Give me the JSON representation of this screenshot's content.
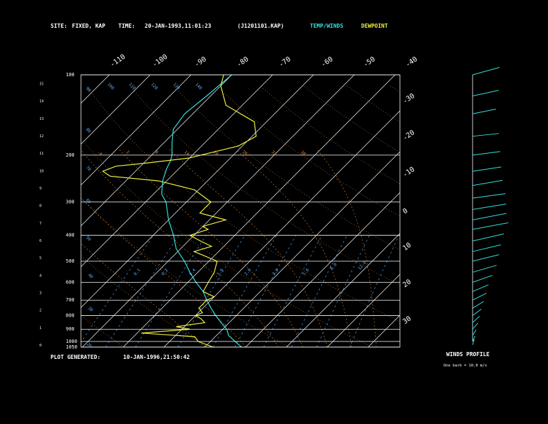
{
  "header": {
    "site_label": "SITE:",
    "site_value": "FIXED, KAP",
    "time_label": "TIME:",
    "time_value": "20-JAN-1993,11:01:23",
    "file_value": "(J1201101.KAP)",
    "legend_temp": "TEMP/WINDS",
    "legend_dew": "DEWPOINT"
  },
  "footer": {
    "plot_label": "PLOT GENERATED:",
    "plot_value": "10-JAN-1996,21:50:42"
  },
  "winds": {
    "title": "WINDS PROFILE",
    "note": "One barb = 10.0 m/s"
  },
  "colors": {
    "background": "#000000",
    "temp": "#33e0e0",
    "dew": "#f0f040",
    "grid": "#ffffff",
    "mixing": "#5bb0ff",
    "adiabat": "#e08a3a"
  },
  "chart_data": {
    "type": "line",
    "subtype": "skew-t log-p",
    "pressure_labels": [
      "100",
      "200",
      "300",
      "400",
      "500",
      "600",
      "700",
      "800",
      "900",
      "1000",
      "1050"
    ],
    "height_km_labels": [
      "0",
      "1",
      "2",
      "3",
      "4",
      "5",
      "6",
      "7",
      "8",
      "9",
      "10",
      "11",
      "12",
      "13",
      "14",
      "15"
    ],
    "top_temp_labels": [
      "-110",
      "-100",
      "-90",
      "-80",
      "-70",
      "-60",
      "-50",
      "-40"
    ],
    "right_temp_labels": [
      "-30",
      "-20",
      "-10",
      "0",
      "10",
      "20",
      "30"
    ],
    "mixing_labels": [
      "0.1",
      "0.2",
      "0.4",
      "1.0",
      "2.0",
      "3.0",
      "5.0",
      "8.0",
      "12.0"
    ],
    "dry_adiabat_labels": [
      "20",
      "30",
      "40",
      "50",
      "60",
      "70",
      "80",
      "90",
      "100",
      "110",
      "120",
      "130",
      "140"
    ],
    "moist_adiabat_labels": [
      "-4",
      "2",
      "8",
      "14",
      "20",
      "26",
      "32",
      "38"
    ],
    "ylim_hpa": [
      1050,
      100
    ],
    "series": [
      {
        "name": "TEMP/WINDS",
        "p_hpa": [
          1050,
          1000,
          950,
          900,
          850,
          800,
          750,
          700,
          650,
          600,
          550,
          500,
          450,
          400,
          350,
          300,
          280,
          250,
          225,
          210,
          200,
          180,
          160,
          140,
          120,
          100
        ],
        "t_c": [
          -1,
          -4,
          -7,
          -9,
          -12,
          -15,
          -18,
          -21,
          -24,
          -28,
          -32,
          -36,
          -41,
          -45,
          -50,
          -55,
          -58,
          -61,
          -63,
          -64,
          -65,
          -68,
          -71,
          -72,
          -71,
          -70
        ]
      },
      {
        "name": "DEWPOINT",
        "p_hpa": [
          1050,
          1000,
          960,
          930,
          900,
          880,
          850,
          820,
          800,
          780,
          750,
          700,
          680,
          650,
          600,
          550,
          500,
          460,
          440,
          420,
          400,
          380,
          370,
          350,
          330,
          310,
          300,
          270,
          250,
          240,
          230,
          220,
          215,
          205,
          200,
          185,
          170,
          150,
          130,
          110,
          100
        ],
        "td_c": [
          -8,
          -13,
          -15,
          -29,
          -18,
          -22,
          -16,
          -18,
          -20,
          -19,
          -21,
          -21,
          -20,
          -24,
          -25,
          -26,
          -28,
          -36,
          -33,
          -37,
          -41,
          -38,
          -40,
          -36,
          -44,
          -44,
          -44,
          -51,
          -62,
          -75,
          -78,
          -76,
          -70,
          -60,
          -58,
          -51,
          -49,
          -53,
          -64,
          -70,
          -72
        ]
      }
    ],
    "winds_profile": {
      "p_hpa": [
        100,
        120,
        140,
        170,
        200,
        230,
        260,
        290,
        320,
        350,
        380,
        420,
        460,
        500,
        550,
        600,
        650,
        700,
        750,
        800,
        850,
        900,
        950,
        1000,
        1030
      ],
      "dir_deg": [
        300,
        290,
        285,
        270,
        265,
        260,
        255,
        260,
        255,
        250,
        250,
        245,
        245,
        245,
        240,
        235,
        230,
        225,
        220,
        215,
        210,
        205,
        200,
        195,
        190
      ],
      "spd_ms": [
        35,
        30,
        25,
        28,
        30,
        32,
        35,
        38,
        40,
        42,
        45,
        40,
        35,
        32,
        30,
        25,
        20,
        18,
        15,
        12,
        10,
        8,
        5,
        4,
        3
      ]
    }
  }
}
